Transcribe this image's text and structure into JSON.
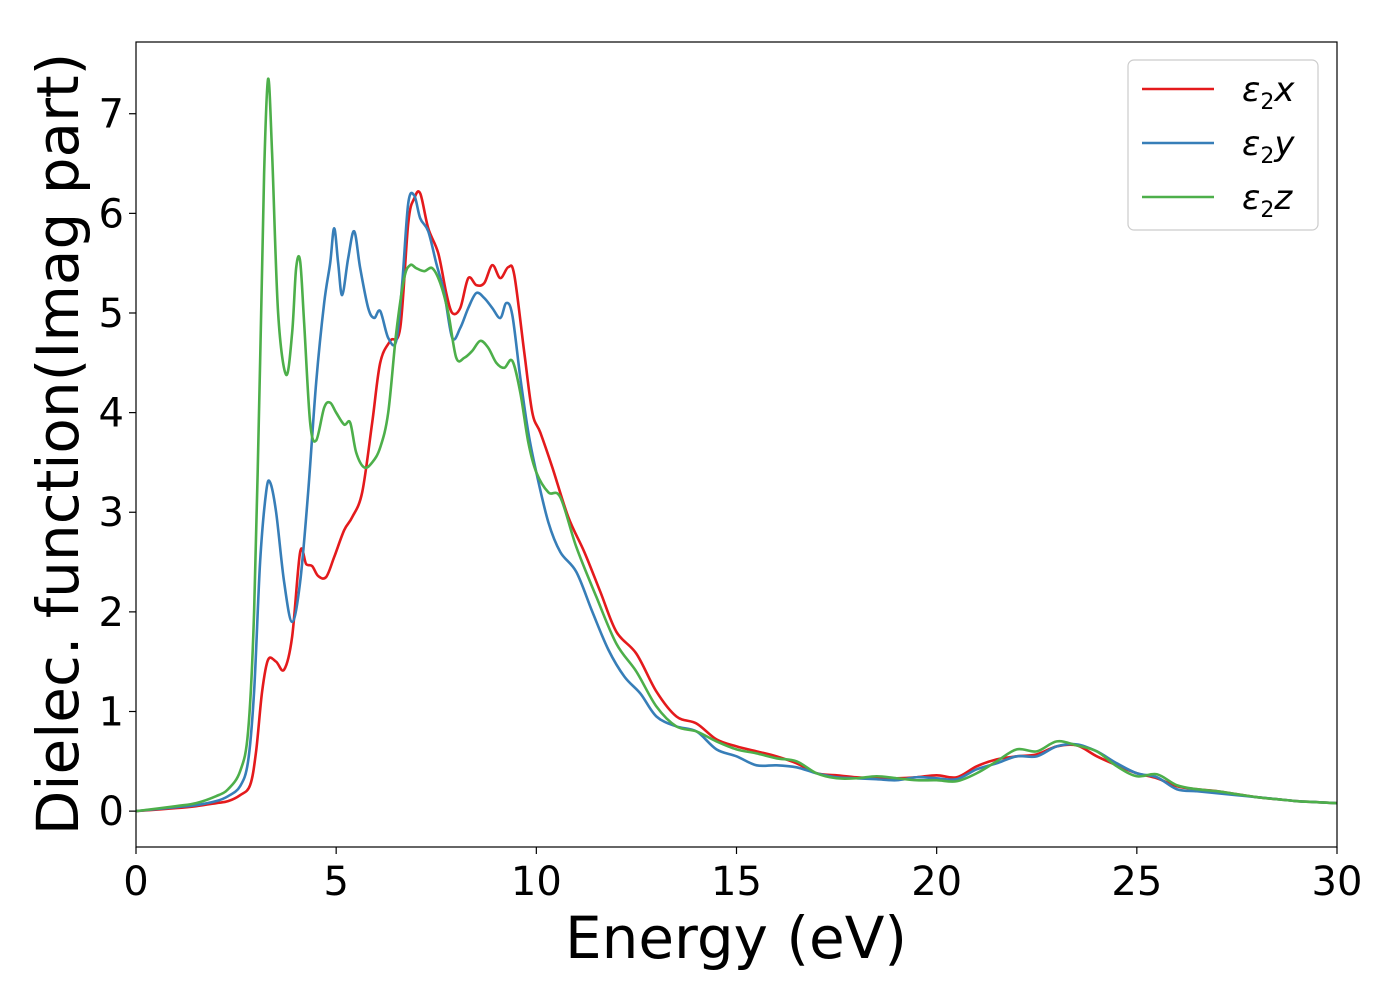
{
  "chart_data": {
    "type": "line",
    "title": "",
    "xlabel": "Energy (eV)",
    "ylabel": "Dielec. function(Imag part)",
    "xlim": [
      0,
      30
    ],
    "ylim": [
      -0.36,
      7.72
    ],
    "xticks": [
      0,
      5,
      10,
      15,
      20,
      25,
      30
    ],
    "yticks": [
      0,
      1,
      2,
      3,
      4,
      5,
      6,
      7
    ],
    "grid": false,
    "legend_position": "top-right",
    "series": [
      {
        "name": "ε2x",
        "name_parts": {
          "base": "ε",
          "sub": "2",
          "var": "x"
        },
        "color": "#e41a1c",
        "x": [
          0,
          1,
          1.5,
          2,
          2.3,
          2.6,
          2.85,
          3.0,
          3.15,
          3.3,
          3.5,
          3.7,
          3.9,
          4.1,
          4.25,
          4.4,
          4.55,
          4.75,
          4.95,
          5.2,
          5.4,
          5.65,
          5.9,
          6.1,
          6.35,
          6.6,
          6.8,
          6.95,
          7.1,
          7.3,
          7.55,
          7.75,
          7.9,
          8.1,
          8.3,
          8.5,
          8.7,
          8.9,
          9.1,
          9.3,
          9.45,
          9.7,
          9.9,
          10.1,
          10.4,
          10.8,
          11.2,
          11.6,
          12.0,
          12.5,
          13.0,
          13.5,
          14.0,
          14.5,
          15.0,
          15.5,
          16.0,
          16.5,
          17.0,
          17.5,
          18.0,
          18.5,
          19.0,
          19.5,
          20.0,
          20.5,
          21.0,
          21.5,
          22.0,
          22.5,
          23.0,
          23.5,
          24.0,
          24.5,
          25.0,
          25.5,
          26.0,
          26.5,
          27.0,
          27.5,
          28.0,
          28.5,
          29.0,
          29.5,
          30.0
        ],
        "y": [
          0.0,
          0.03,
          0.05,
          0.08,
          0.1,
          0.16,
          0.26,
          0.6,
          1.2,
          1.52,
          1.5,
          1.42,
          1.75,
          2.6,
          2.48,
          2.46,
          2.36,
          2.35,
          2.55,
          2.82,
          2.95,
          3.2,
          3.9,
          4.5,
          4.72,
          4.85,
          5.9,
          6.15,
          6.2,
          5.85,
          5.6,
          5.2,
          5.0,
          5.05,
          5.35,
          5.28,
          5.3,
          5.48,
          5.35,
          5.46,
          5.38,
          4.6,
          4.0,
          3.8,
          3.45,
          2.95,
          2.6,
          2.2,
          1.8,
          1.58,
          1.2,
          0.95,
          0.88,
          0.72,
          0.65,
          0.6,
          0.55,
          0.48,
          0.38,
          0.36,
          0.34,
          0.33,
          0.33,
          0.34,
          0.36,
          0.34,
          0.45,
          0.52,
          0.55,
          0.57,
          0.65,
          0.66,
          0.55,
          0.46,
          0.38,
          0.33,
          0.25,
          0.22,
          0.2,
          0.17,
          0.14,
          0.12,
          0.1,
          0.09,
          0.08
        ]
      },
      {
        "name": "ε2y",
        "name_parts": {
          "base": "ε",
          "sub": "2",
          "var": "y"
        },
        "color": "#377eb8",
        "x": [
          0,
          1,
          1.5,
          2,
          2.3,
          2.6,
          2.8,
          2.95,
          3.1,
          3.25,
          3.35,
          3.5,
          3.7,
          3.9,
          4.1,
          4.3,
          4.5,
          4.7,
          4.85,
          4.95,
          5.05,
          5.15,
          5.3,
          5.45,
          5.6,
          5.8,
          5.95,
          6.1,
          6.3,
          6.5,
          6.65,
          6.8,
          6.95,
          7.1,
          7.3,
          7.5,
          7.7,
          7.9,
          8.1,
          8.3,
          8.5,
          8.7,
          8.9,
          9.1,
          9.25,
          9.4,
          9.6,
          9.8,
          10.0,
          10.3,
          10.6,
          11.0,
          11.4,
          11.8,
          12.2,
          12.6,
          13.0,
          13.5,
          14.0,
          14.5,
          15.0,
          15.5,
          16.0,
          16.5,
          17.0,
          17.5,
          18.0,
          18.5,
          19.0,
          19.5,
          20.0,
          20.5,
          21.0,
          21.5,
          22.0,
          22.5,
          23.0,
          23.5,
          24.0,
          24.5,
          25.0,
          25.5,
          26.0,
          26.5,
          27.0,
          27.5,
          28.0,
          28.5,
          29.0,
          29.5,
          30.0
        ],
        "y": [
          0.0,
          0.04,
          0.06,
          0.1,
          0.15,
          0.25,
          0.5,
          1.2,
          2.5,
          3.2,
          3.3,
          3.0,
          2.3,
          1.9,
          2.3,
          3.2,
          4.3,
          5.1,
          5.5,
          5.85,
          5.5,
          5.18,
          5.55,
          5.82,
          5.45,
          5.05,
          4.95,
          5.02,
          4.75,
          4.72,
          5.3,
          6.1,
          6.18,
          5.95,
          5.82,
          5.5,
          5.2,
          4.75,
          4.85,
          5.05,
          5.2,
          5.15,
          5.05,
          4.95,
          5.1,
          4.98,
          4.35,
          3.8,
          3.4,
          2.9,
          2.6,
          2.4,
          2.0,
          1.62,
          1.35,
          1.18,
          0.95,
          0.85,
          0.8,
          0.62,
          0.55,
          0.46,
          0.46,
          0.44,
          0.38,
          0.34,
          0.33,
          0.32,
          0.31,
          0.34,
          0.33,
          0.32,
          0.42,
          0.48,
          0.55,
          0.55,
          0.65,
          0.67,
          0.6,
          0.48,
          0.38,
          0.34,
          0.22,
          0.2,
          0.18,
          0.16,
          0.14,
          0.12,
          0.1,
          0.09,
          0.08
        ]
      },
      {
        "name": "ε2z",
        "name_parts": {
          "base": "ε",
          "sub": "2",
          "var": "z"
        },
        "color": "#4daf4a",
        "x": [
          0,
          1,
          1.5,
          2,
          2.3,
          2.6,
          2.8,
          2.95,
          3.1,
          3.2,
          3.3,
          3.4,
          3.55,
          3.75,
          3.9,
          4.0,
          4.1,
          4.2,
          4.35,
          4.5,
          4.7,
          4.85,
          5.0,
          5.2,
          5.35,
          5.5,
          5.7,
          5.9,
          6.1,
          6.3,
          6.5,
          6.7,
          6.85,
          7.0,
          7.2,
          7.4,
          7.6,
          7.8,
          8.0,
          8.2,
          8.4,
          8.6,
          8.8,
          9.0,
          9.2,
          9.4,
          9.6,
          9.8,
          10.0,
          10.3,
          10.6,
          11.0,
          11.5,
          12.0,
          12.5,
          13.0,
          13.5,
          14.0,
          14.5,
          15.0,
          15.5,
          16.0,
          16.5,
          17.0,
          17.5,
          18.0,
          18.5,
          19.0,
          19.5,
          20.0,
          20.5,
          21.0,
          21.5,
          22.0,
          22.5,
          23.0,
          23.5,
          24.0,
          24.5,
          25.0,
          25.5,
          26.0,
          26.5,
          27.0,
          27.5,
          28.0,
          28.5,
          29.0,
          29.5,
          30.0
        ],
        "y": [
          0.0,
          0.05,
          0.08,
          0.15,
          0.22,
          0.4,
          0.8,
          2.0,
          4.5,
          6.4,
          7.35,
          6.6,
          5.0,
          4.38,
          4.8,
          5.45,
          5.52,
          4.9,
          3.9,
          3.72,
          4.05,
          4.1,
          4.0,
          3.88,
          3.9,
          3.6,
          3.45,
          3.5,
          3.65,
          4.0,
          4.8,
          5.35,
          5.48,
          5.45,
          5.42,
          5.45,
          5.3,
          5.0,
          4.55,
          4.55,
          4.62,
          4.72,
          4.65,
          4.5,
          4.45,
          4.52,
          4.2,
          3.7,
          3.4,
          3.2,
          3.15,
          2.65,
          2.15,
          1.68,
          1.4,
          1.05,
          0.85,
          0.8,
          0.7,
          0.62,
          0.58,
          0.53,
          0.5,
          0.38,
          0.33,
          0.33,
          0.35,
          0.33,
          0.31,
          0.31,
          0.3,
          0.38,
          0.5,
          0.62,
          0.6,
          0.7,
          0.66,
          0.6,
          0.45,
          0.35,
          0.37,
          0.26,
          0.22,
          0.2,
          0.17,
          0.14,
          0.12,
          0.1,
          0.09,
          0.08
        ]
      }
    ]
  }
}
